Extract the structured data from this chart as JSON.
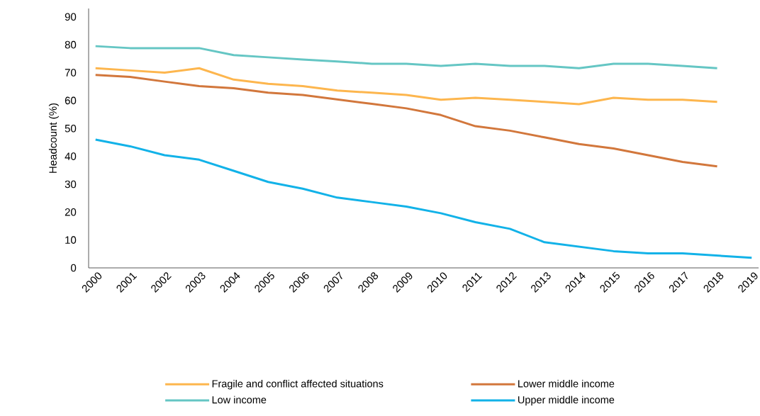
{
  "chart_data": {
    "type": "line",
    "ylabel": "Headcount (%)",
    "categories": [
      "2000",
      "2001",
      "2002",
      "2003",
      "2004",
      "2005",
      "2006",
      "2007",
      "2008",
      "2009",
      "2010",
      "2011",
      "2012",
      "2013",
      "2014",
      "2015",
      "2016",
      "2017",
      "2018",
      "2019"
    ],
    "series": [
      {
        "name": "Fragile and conflict affected situations",
        "color": "#fdb64e",
        "values": [
          71.6,
          70.8,
          70,
          71.6,
          67.5,
          66,
          65.2,
          63.6,
          62.8,
          62,
          60.3,
          61,
          60.3,
          59.5,
          58.7,
          61,
          60.3,
          60.3,
          59.5,
          null
        ]
      },
      {
        "name": "Lower middle income",
        "color": "#d2773c",
        "values": [
          69.2,
          68.5,
          66.8,
          65.2,
          64.4,
          62.8,
          62,
          60.4,
          58.8,
          57.2,
          54.8,
          50.8,
          49.2,
          46.8,
          44.4,
          42.8,
          40.4,
          38,
          36.4,
          null
        ]
      },
      {
        "name": "Low income",
        "color": "#65c6c4",
        "values": [
          79.5,
          78.8,
          78.8,
          78.8,
          76.3,
          75.5,
          74.7,
          74,
          73.2,
          73.2,
          72.4,
          73.2,
          72.4,
          72.4,
          71.6,
          73.2,
          73.2,
          72.4,
          71.6,
          null
        ]
      },
      {
        "name": "Upper middle income",
        "color": "#12b2e8",
        "values": [
          46,
          43.6,
          40.4,
          38.8,
          34.8,
          30.8,
          28.4,
          25.2,
          23.6,
          22,
          19.6,
          16.4,
          14,
          9.2,
          7.6,
          6,
          5.2,
          5.2,
          4.4,
          3.6
        ]
      }
    ],
    "ylim": [
      0,
      93
    ],
    "yticks": [
      0,
      10,
      20,
      30,
      40,
      50,
      60,
      70,
      80,
      90
    ],
    "grid": false,
    "legend": "bottom",
    "marker": "none",
    "line_style": "solid"
  }
}
